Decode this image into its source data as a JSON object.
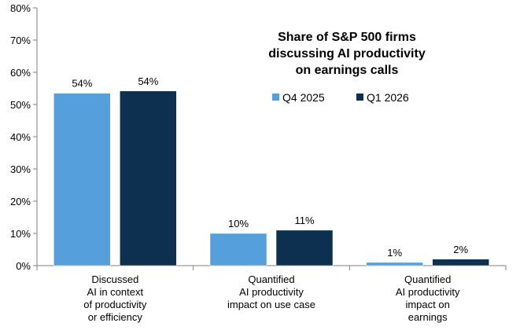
{
  "chart_data": {
    "type": "bar",
    "title_lines": [
      "Share of S&P 500 firms",
      "discussing AI productivity",
      "on earnings calls"
    ],
    "categories": [
      [
        "Discussed",
        "AI in context",
        "of productivity",
        "or efficiency"
      ],
      [
        "Quantified",
        "AI productivity",
        "impact on use case"
      ],
      [
        "Quantified",
        "AI productivity",
        "impact on",
        "earnings"
      ]
    ],
    "series": [
      {
        "name": "Q4 2025",
        "color": "#55a0dc",
        "values": [
          53.5,
          10,
          1
        ],
        "labels": [
          "54%",
          "10%",
          "1%"
        ]
      },
      {
        "name": "Q1 2026",
        "color": "#0d3050",
        "values": [
          54.2,
          11,
          2
        ],
        "labels": [
          "54%",
          "11%",
          "2%"
        ]
      }
    ],
    "ylim": [
      0,
      80
    ],
    "yticks": [
      "0%",
      "10%",
      "20%",
      "30%",
      "40%",
      "50%",
      "60%",
      "70%",
      "80%"
    ],
    "grid": false,
    "legend_position": "top-right, below title"
  }
}
